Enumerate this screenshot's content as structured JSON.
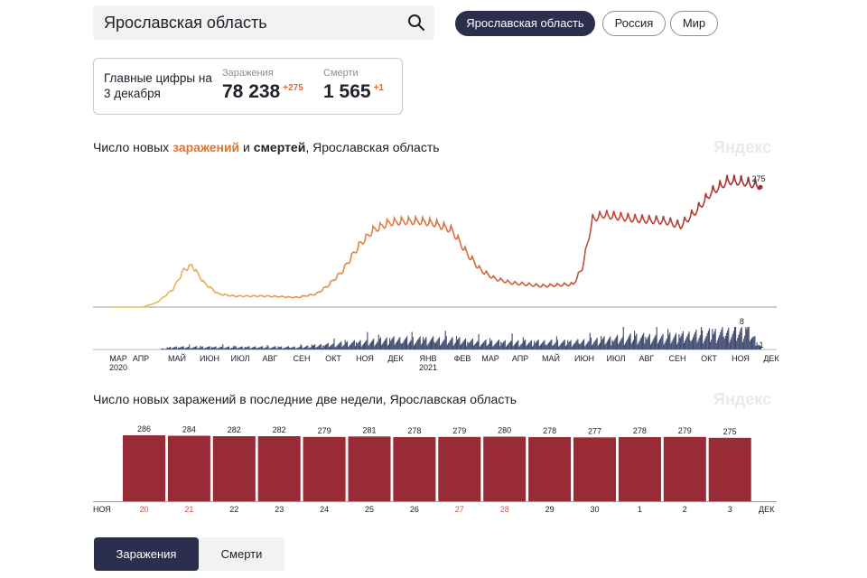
{
  "search": {
    "value": "Ярославская область"
  },
  "region_tabs": [
    {
      "label": "Ярославская область",
      "active": true
    },
    {
      "label": "Россия",
      "active": false
    },
    {
      "label": "Мир",
      "active": false
    }
  ],
  "summary": {
    "title": "Главные цифры на 3 декабря",
    "infections": {
      "label": "Заражения",
      "value": "78 238",
      "delta": "+275"
    },
    "deaths": {
      "label": "Смерти",
      "value": "1 565",
      "delta": "+1"
    }
  },
  "watermark": "Яндекс",
  "colors": {
    "bar": "#992b36",
    "deaths": "#434e72",
    "line_start": "#e8c45a",
    "line_mid": "#e07a3c",
    "line_end": "#a52a36",
    "accent": "#e0752e",
    "dark": "#2b2f4d"
  },
  "chart_data": [
    {
      "type": "line",
      "title_parts": [
        {
          "text": "Число новых ",
          "style": "normal"
        },
        {
          "text": "заражений",
          "style": "orange"
        },
        {
          "text": " и ",
          "style": "normal"
        },
        {
          "text": "смертей",
          "style": "dark"
        },
        {
          "text": ", Ярославская область",
          "style": "normal"
        }
      ],
      "x_ticks": [
        {
          "label": "МАР",
          "year": "2020"
        },
        {
          "label": "АПР"
        },
        {
          "label": "МАЙ"
        },
        {
          "label": "ИЮН"
        },
        {
          "label": "ИЮЛ"
        },
        {
          "label": "АВГ"
        },
        {
          "label": "СЕН"
        },
        {
          "label": "ОКТ"
        },
        {
          "label": "НОЯ"
        },
        {
          "label": "ДЕК"
        },
        {
          "label": "ЯНВ",
          "year": "2021"
        },
        {
          "label": "ФЕВ"
        },
        {
          "label": "МАР"
        },
        {
          "label": "АПР"
        },
        {
          "label": "МАЙ"
        },
        {
          "label": "ИЮН"
        },
        {
          "label": "ИЮЛ"
        },
        {
          "label": "АВГ"
        },
        {
          "label": "СЕН"
        },
        {
          "label": "ОКТ"
        },
        {
          "label": "НОЯ"
        },
        {
          "label": "ДЕК"
        }
      ],
      "series": [
        {
          "name": "заражений",
          "points": [
            [
              "2020-03-01",
              0
            ],
            [
              "2020-04-01",
              0
            ],
            [
              "2020-04-15",
              10
            ],
            [
              "2020-05-01",
              40
            ],
            [
              "2020-05-12",
              85
            ],
            [
              "2020-05-20",
              95
            ],
            [
              "2020-06-01",
              55
            ],
            [
              "2020-06-15",
              30
            ],
            [
              "2020-07-01",
              25
            ],
            [
              "2020-08-01",
              25
            ],
            [
              "2020-09-01",
              22
            ],
            [
              "2020-09-20",
              30
            ],
            [
              "2020-10-01",
              48
            ],
            [
              "2020-10-15",
              80
            ],
            [
              "2020-11-01",
              140
            ],
            [
              "2020-11-15",
              175
            ],
            [
              "2020-12-01",
              192
            ],
            [
              "2020-12-15",
              195
            ],
            [
              "2021-01-01",
              195
            ],
            [
              "2021-01-15",
              190
            ],
            [
              "2021-02-01",
              175
            ],
            [
              "2021-02-15",
              125
            ],
            [
              "2021-03-01",
              85
            ],
            [
              "2021-03-15",
              65
            ],
            [
              "2021-04-01",
              55
            ],
            [
              "2021-05-01",
              48
            ],
            [
              "2021-06-01",
              52
            ],
            [
              "2021-06-10",
              90
            ],
            [
              "2021-06-20",
              200
            ],
            [
              "2021-07-01",
              210
            ],
            [
              "2021-08-01",
              200
            ],
            [
              "2021-09-01",
              195
            ],
            [
              "2021-09-15",
              185
            ],
            [
              "2021-10-01",
              220
            ],
            [
              "2021-10-15",
              260
            ],
            [
              "2021-11-01",
              287
            ],
            [
              "2021-11-15",
              285
            ],
            [
              "2021-12-03",
              275
            ]
          ],
          "last_label": "275"
        },
        {
          "name": "смертей",
          "points": [
            [
              "2020-03-01",
              0
            ],
            [
              "2020-04-15",
              0
            ],
            [
              "2020-05-01",
              1
            ],
            [
              "2020-06-01",
              1
            ],
            [
              "2020-07-01",
              1
            ],
            [
              "2020-08-01",
              1
            ],
            [
              "2020-09-01",
              1
            ],
            [
              "2020-10-01",
              2
            ],
            [
              "2020-11-01",
              3
            ],
            [
              "2020-12-01",
              4
            ],
            [
              "2021-01-01",
              4
            ],
            [
              "2021-02-01",
              4
            ],
            [
              "2021-03-01",
              3
            ],
            [
              "2021-04-01",
              3
            ],
            [
              "2021-05-01",
              3
            ],
            [
              "2021-06-01",
              3
            ],
            [
              "2021-07-01",
              4
            ],
            [
              "2021-08-01",
              5
            ],
            [
              "2021-09-01",
              5
            ],
            [
              "2021-10-01",
              6
            ],
            [
              "2021-11-01",
              7
            ],
            [
              "2021-11-20",
              8
            ],
            [
              "2021-12-03",
              1
            ]
          ],
          "peak_label": "8",
          "last_label": "1"
        }
      ]
    },
    {
      "type": "bar",
      "title": "Число новых заражений в последние две недели, Ярославская область",
      "month_start": "НОЯ",
      "month_end": "ДЕК",
      "categories": [
        "20",
        "21",
        "22",
        "23",
        "24",
        "25",
        "26",
        "27",
        "28",
        "29",
        "30",
        "1",
        "2",
        "3"
      ],
      "highlight_categories": [
        "20",
        "21",
        "27",
        "28"
      ],
      "values": [
        286,
        284,
        282,
        282,
        279,
        281,
        278,
        279,
        280,
        278,
        277,
        278,
        279,
        275
      ]
    }
  ],
  "bottom_tabs": [
    {
      "label": "Заражения",
      "active": true
    },
    {
      "label": "Смерти",
      "active": false
    }
  ]
}
